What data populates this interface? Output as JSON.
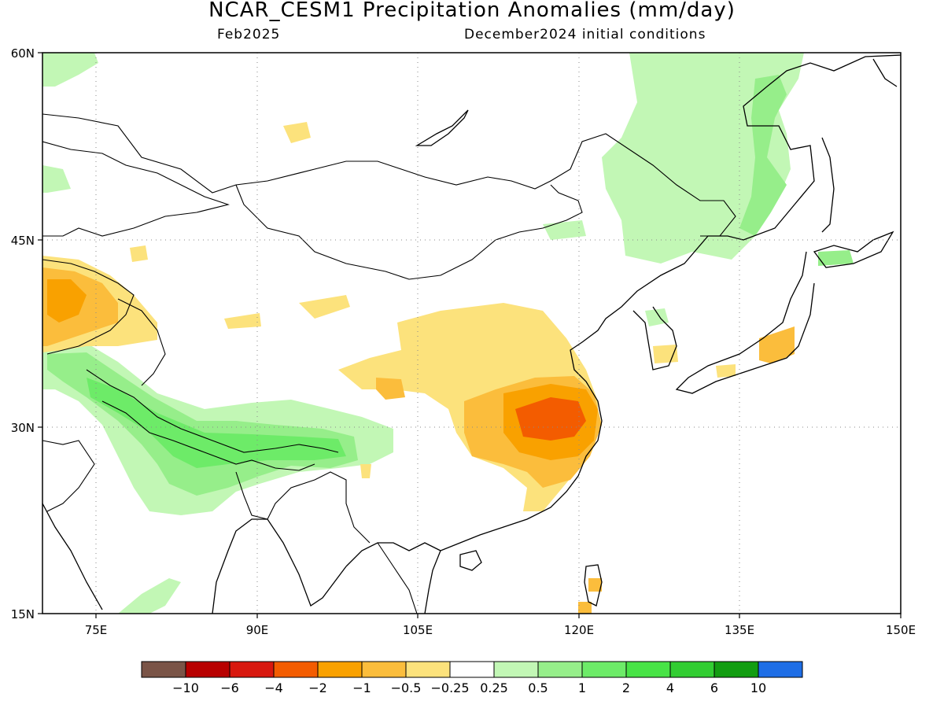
{
  "title": "NCAR_CESM1 Precipitation Anomalies (mm/day)",
  "subtitle_left": "Feb2025",
  "subtitle_right": "December2024 initial conditions",
  "map": {
    "lon_range": [
      70,
      150
    ],
    "lat_range": [
      15,
      60
    ],
    "lon_ticks": [
      {
        "value": 75,
        "label": "75E"
      },
      {
        "value": 90,
        "label": "90E"
      },
      {
        "value": 105,
        "label": "105E"
      },
      {
        "value": 120,
        "label": "120E"
      },
      {
        "value": 135,
        "label": "135E"
      },
      {
        "value": 150,
        "label": "150E"
      }
    ],
    "lat_ticks": [
      {
        "value": 60,
        "label": "60N"
      },
      {
        "value": 45,
        "label": "45N"
      },
      {
        "value": 30,
        "label": "30N"
      },
      {
        "value": 15,
        "label": "15N"
      }
    ],
    "grid": "dotted"
  },
  "colorbar": {
    "colors": [
      "#7a5447",
      "#b80000",
      "#d8180f",
      "#f35c00",
      "#f9a100",
      "#fbbd3c",
      "#fce27c",
      "#ffffff",
      "#c2f7b5",
      "#96ee8a",
      "#6deb68",
      "#48e346",
      "#32cd32",
      "#129d11",
      "#1e6ee6"
    ],
    "labels": [
      "−10",
      "−6",
      "−4",
      "−2",
      "−1",
      "−0.5",
      "−0.25",
      "0.25",
      "0.5",
      "1",
      "2",
      "4",
      "6",
      "10"
    ]
  }
}
